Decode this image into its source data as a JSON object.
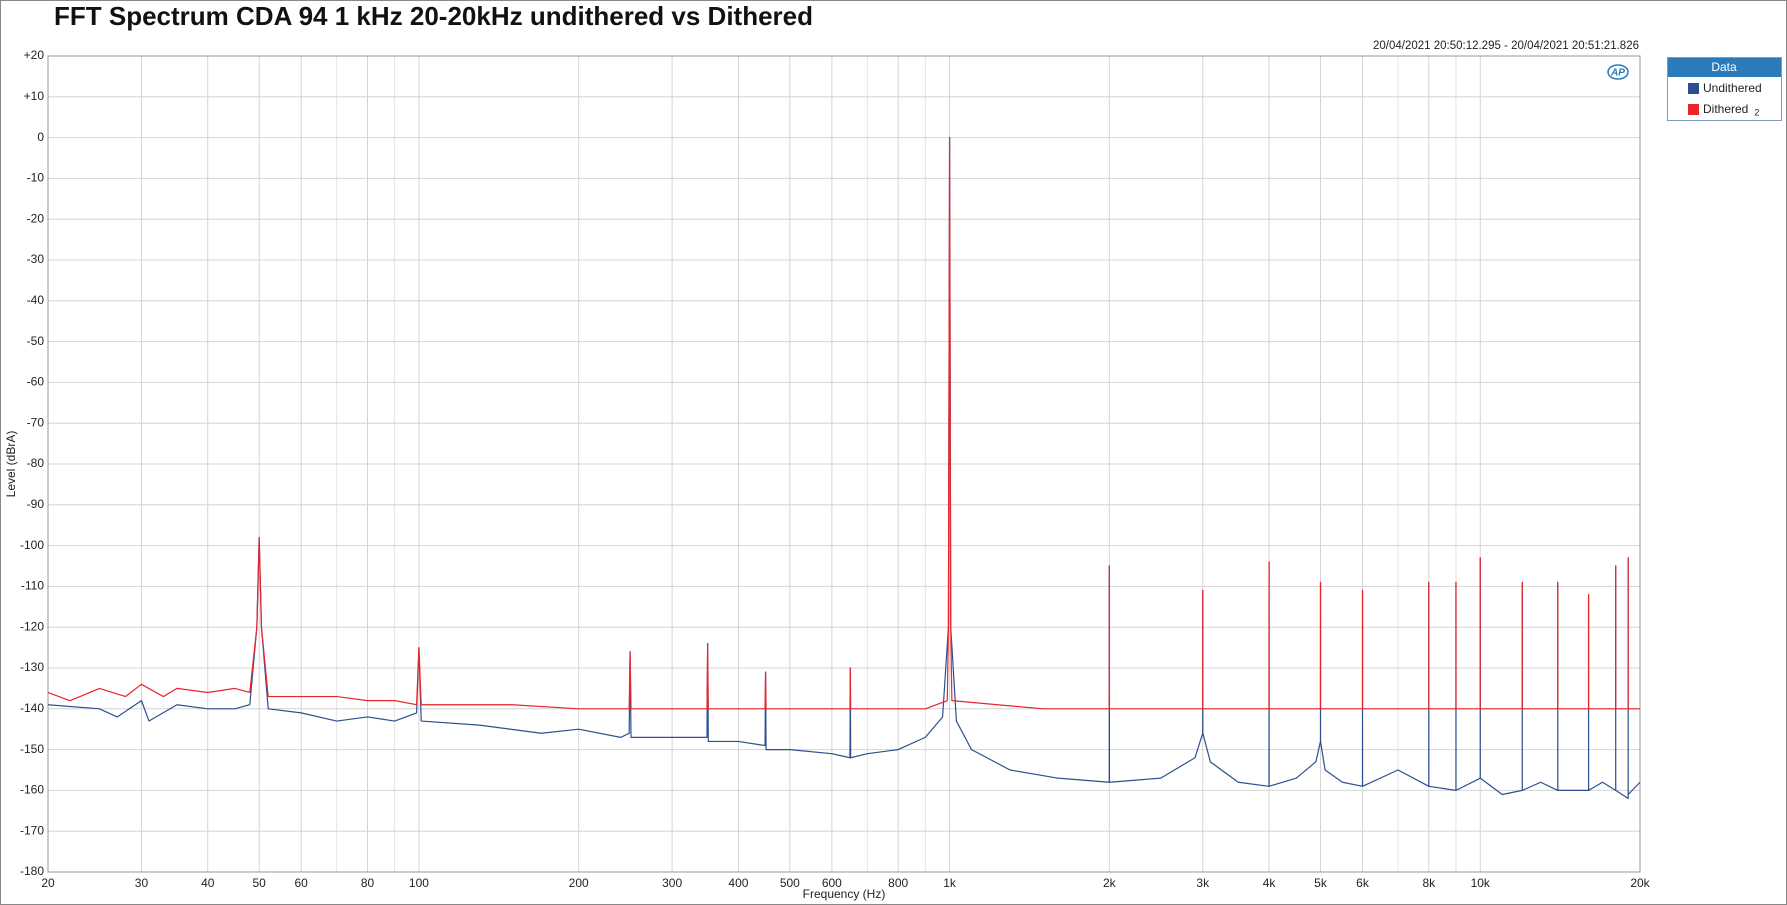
{
  "chart_data": {
    "type": "line",
    "title": "FFT Spectrum CDA 94 1 kHz  20-20kHz undithered vs Dithered",
    "timestamp": "20/04/2021 20:50:12.295 - 20/04/2021 20:51:21.826",
    "x_label": "Frequency (Hz)",
    "y_label": "Level (dBrA)",
    "legend_title": "Data",
    "legend": "top-right",
    "grid": true,
    "xscale": "log",
    "xlim": [
      20,
      20000
    ],
    "xticks": [
      20,
      30,
      40,
      50,
      60,
      80,
      100,
      200,
      300,
      400,
      500,
      600,
      800,
      {
        "value": 1000,
        "label": "1k"
      },
      {
        "value": 2000,
        "label": "2k"
      },
      {
        "value": 3000,
        "label": "3k"
      },
      {
        "value": 4000,
        "label": "4k"
      },
      {
        "value": 5000,
        "label": "5k"
      },
      {
        "value": 6000,
        "label": "6k"
      },
      {
        "value": 8000,
        "label": "8k"
      },
      {
        "value": 10000,
        "label": "10k"
      },
      {
        "value": 20000,
        "label": "20k"
      }
    ],
    "xminorticks": [
      70,
      90,
      700,
      900,
      7000,
      9000
    ],
    "ylim": [
      -180,
      20
    ],
    "yticks": [
      {
        "value": 20,
        "label": "+20"
      },
      {
        "value": 10,
        "label": "+10"
      },
      0,
      -10,
      -20,
      -30,
      -40,
      -50,
      -60,
      -70,
      -80,
      -90,
      -100,
      -110,
      -120,
      -130,
      -140,
      -150,
      -160,
      -170,
      -180
    ],
    "series": [
      {
        "name": "Undithered",
        "color": "#2e4f8f",
        "x": [
          20,
          25,
          27,
          30,
          31,
          35,
          40,
          45,
          48,
          49.5,
          50,
          50.5,
          52,
          60,
          70,
          80,
          90,
          99,
          100,
          101,
          130,
          170,
          200,
          240,
          249,
          250,
          251,
          300,
          349,
          350,
          351,
          400,
          449,
          450,
          451,
          500,
          600,
          649,
          650,
          651,
          700,
          800,
          900,
          970,
          995,
          1000,
          1005,
          1030,
          1100,
          1300,
          1600,
          1999,
          2000,
          2001,
          2500,
          2900,
          2999,
          3000,
          3001,
          3100,
          3500,
          3999,
          4000,
          4001,
          4500,
          4900,
          4999,
          5000,
          5001,
          5100,
          5500,
          5999,
          6000,
          6001,
          7000,
          7999,
          8000,
          8001,
          8999,
          9000,
          9001,
          9999,
          10000,
          10001,
          11000,
          11999,
          12000,
          12001,
          13000,
          13999,
          14000,
          14001,
          15000,
          15999,
          16000,
          16001,
          17000,
          17999,
          18000,
          18001,
          18999,
          19000,
          19001,
          20000
        ],
        "values": [
          -139,
          -140,
          -142,
          -138,
          -143,
          -139,
          -140,
          -140,
          -139,
          -120,
          -98,
          -120,
          -140,
          -141,
          -143,
          -142,
          -143,
          -141,
          -125,
          -143,
          -144,
          -146,
          -145,
          -147,
          -146,
          -126,
          -147,
          -147,
          -147,
          -124,
          -148,
          -148,
          -149,
          -131,
          -150,
          -150,
          -151,
          -152,
          -130,
          -152,
          -151,
          -150,
          -147,
          -142,
          -120,
          0,
          -120,
          -143,
          -150,
          -155,
          -157,
          -158,
          -105,
          -158,
          -157,
          -152,
          -146,
          -111,
          -146,
          -153,
          -158,
          -159,
          -104,
          -159,
          -157,
          -153,
          -148,
          -109,
          -148,
          -155,
          -158,
          -159,
          -111,
          -159,
          -155,
          -159,
          -109,
          -159,
          -160,
          -109,
          -160,
          -157,
          -103,
          -157,
          -161,
          -160,
          -109,
          -160,
          -158,
          -160,
          -109,
          -160,
          -160,
          -160,
          -112,
          -160,
          -158,
          -160,
          -105,
          -160,
          -162,
          -103,
          -161,
          -158
        ]
      },
      {
        "name": "Dithered",
        "label_index": "2",
        "color": "#e8262b",
        "x": [
          20,
          22,
          25,
          28,
          30,
          33,
          35,
          40,
          45,
          48,
          49.5,
          50,
          50.5,
          52,
          60,
          70,
          80,
          90,
          99,
          100,
          101,
          150,
          200,
          249,
          250,
          251,
          300,
          349,
          350,
          351,
          449,
          450,
          451,
          649,
          650,
          651,
          900,
          990,
          995,
          1000,
          1005,
          1010,
          1500,
          1999,
          2000,
          2001,
          2999,
          3000,
          3001,
          3999,
          4000,
          4001,
          4999,
          5000,
          5001,
          5999,
          6000,
          6001,
          7999,
          8000,
          8001,
          8999,
          9000,
          9001,
          9999,
          10000,
          10001,
          11999,
          12000,
          12001,
          13999,
          14000,
          14001,
          15999,
          16000,
          16001,
          17999,
          18000,
          18001,
          18999,
          19000,
          19001,
          20000
        ],
        "values": [
          -136,
          -138,
          -135,
          -137,
          -134,
          -137,
          -135,
          -136,
          -135,
          -136,
          -120,
          -98,
          -120,
          -137,
          -137,
          -137,
          -138,
          -138,
          -139,
          -125,
          -139,
          -139,
          -140,
          -140,
          -126,
          -140,
          -140,
          -140,
          -124,
          -140,
          -140,
          -131,
          -140,
          -140,
          -130,
          -140,
          -140,
          -138,
          -120,
          0,
          -120,
          -138,
          -140,
          -140,
          -105,
          -140,
          -140,
          -111,
          -140,
          -140,
          -104,
          -140,
          -140,
          -109,
          -140,
          -140,
          -111,
          -140,
          -140,
          -109,
          -140,
          -140,
          -109,
          -140,
          -140,
          -103,
          -140,
          -140,
          -109,
          -140,
          -140,
          -109,
          -140,
          -140,
          -112,
          -140,
          -140,
          -105,
          -140,
          -140,
          -103,
          -140,
          -140
        ]
      }
    ]
  }
}
